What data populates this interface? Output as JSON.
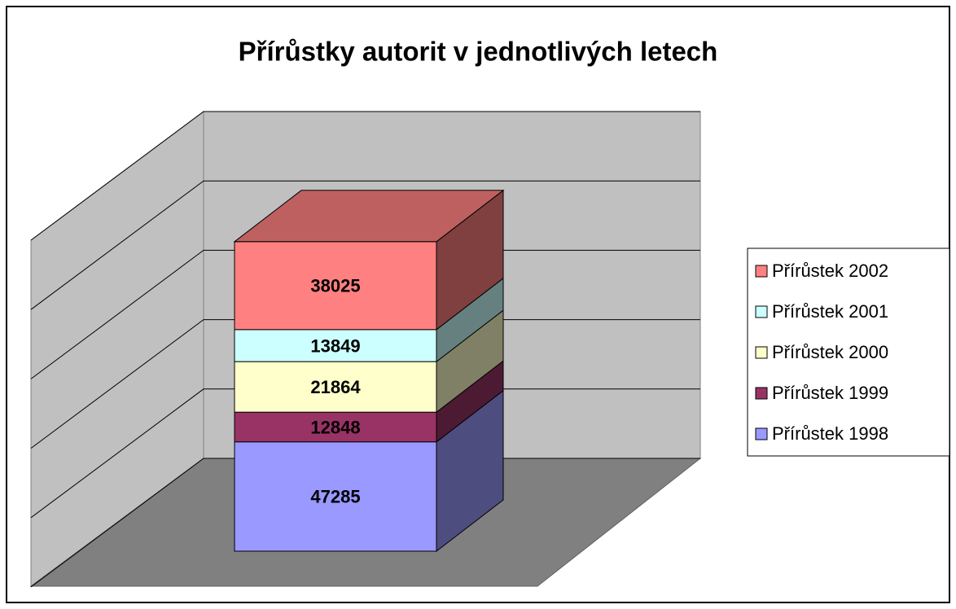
{
  "chart_data": {
    "type": "bar3d_stacked",
    "title": "Přírůstky autorit v jednotlivých letech",
    "categories": [
      null
    ],
    "series": [
      {
        "name": "Přírůstek 1998",
        "color": "#9999ff",
        "values": [
          47285
        ]
      },
      {
        "name": "Přírůstek 1999",
        "color": "#993366",
        "values": [
          12848
        ]
      },
      {
        "name": "Přírůstek 2000",
        "color": "#ffffcc",
        "values": [
          21864
        ]
      },
      {
        "name": "Přírůstek 2001",
        "color": "#ccffff",
        "values": [
          13849
        ]
      },
      {
        "name": "Přírůstek 2002",
        "color": "#ff8080",
        "values": [
          38025
        ]
      }
    ],
    "ylim": [
      0,
      150000
    ],
    "yticks": [
      0,
      30000,
      60000,
      90000,
      120000,
      150000
    ],
    "grid": true,
    "legend": "right"
  }
}
